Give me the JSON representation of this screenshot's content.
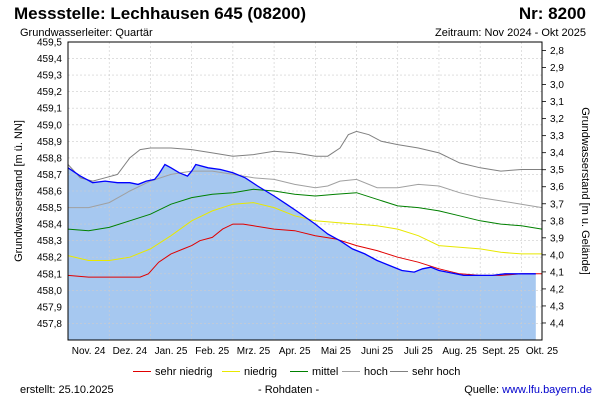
{
  "header": {
    "title": "Messstelle: Lechhausen 645 (08200)",
    "number": "Nr: 8200",
    "aquifer": "Grundwasserleiter: Quartär",
    "period": "Zeitraum: Nov 2024 - Okt 2025"
  },
  "footer": {
    "created": "erstellt:  25.10.2025",
    "rawdata": "- Rohdaten -",
    "source_label": "Quelle:",
    "source_link": "www.lfu.bayern.de"
  },
  "chart_data": {
    "type": "area",
    "ylabel": "Grundwasserstand [m ü. NN]",
    "ylabel_right": "Grundwasserstand [m u. Gelände]",
    "ylim": [
      457.7,
      459.5
    ],
    "yticks": [
      "459,5",
      "459,4",
      "459,3",
      "459,2",
      "459,1",
      "459,0",
      "458,9",
      "458,8",
      "458,7",
      "458,6",
      "458,5",
      "458,4",
      "458,3",
      "458,2",
      "458,1",
      "458,0",
      "457,9",
      "457,8"
    ],
    "ylim_right": [
      2.75,
      4.5
    ],
    "yticks_right": [
      "2,8",
      "2,9",
      "3,0",
      "3,1",
      "3,2",
      "3,3",
      "3,4",
      "3,5",
      "3,6",
      "3,7",
      "3,8",
      "3,9",
      "4,0",
      "4,1",
      "4,2",
      "4,3",
      "4,4"
    ],
    "x_range": [
      0,
      11.5
    ],
    "xticks": [
      "Nov. 24",
      "Dez. 24",
      "Jan. 25",
      "Feb. 25",
      "Mrz. 25",
      "Apr. 25",
      "Mai 25",
      "Juni 25",
      "Juli 25",
      "Aug. 25",
      "Sept. 25",
      "Okt. 25"
    ],
    "grid": true,
    "legend_position": "bottom",
    "colors": {
      "fill": "#a6c8f0",
      "measured": "#0000ff",
      "sehr_niedrig": "#e00000",
      "niedrig": "#e8e800",
      "mittel": "#008000",
      "hoch": "#a0a0a0",
      "sehr_hoch": "#808080",
      "grid": "#cccccc"
    },
    "series": [
      {
        "key": "measured",
        "x": [
          0,
          0.3,
          0.6,
          0.9,
          1.2,
          1.5,
          1.7,
          1.9,
          2.1,
          2.2,
          2.35,
          2.5,
          2.7,
          2.9,
          3.0,
          3.1,
          3.4,
          3.7,
          4.0,
          4.3,
          4.6,
          5.0,
          5.3,
          5.6,
          6.0,
          6.3,
          6.6,
          6.9,
          7.2,
          7.5,
          7.8,
          8.1,
          8.4,
          8.6,
          8.8,
          9.0,
          9.2,
          9.4,
          9.6,
          9.8,
          10.0,
          10.3,
          10.6,
          10.9,
          11.2,
          11.35
        ],
        "values": [
          458.74,
          458.69,
          458.65,
          458.66,
          458.65,
          458.65,
          458.64,
          458.66,
          458.67,
          458.7,
          458.76,
          458.74,
          458.71,
          458.69,
          458.72,
          458.76,
          458.74,
          458.73,
          458.71,
          458.68,
          458.63,
          458.57,
          458.52,
          458.47,
          458.4,
          458.34,
          458.3,
          458.25,
          458.22,
          458.18,
          458.15,
          458.12,
          458.11,
          458.13,
          458.14,
          458.12,
          458.11,
          458.1,
          458.09,
          458.09,
          458.09,
          458.09,
          458.1,
          458.1,
          458.1,
          458.1
        ]
      },
      {
        "key": "sehr_niedrig",
        "name": "sehr niedrig",
        "x": [
          0,
          0.5,
          1,
          1.5,
          1.75,
          1.95,
          2.2,
          2.5,
          2.8,
          3.0,
          3.2,
          3.5,
          3.75,
          4.0,
          4.25,
          4.5,
          5.0,
          5.5,
          6.0,
          6.5,
          7.0,
          7.5,
          8.0,
          8.5,
          9.0,
          9.5,
          10.0,
          10.5,
          11.0,
          11.5
        ],
        "values": [
          458.09,
          458.08,
          458.08,
          458.08,
          458.08,
          458.1,
          458.17,
          458.22,
          458.25,
          458.27,
          458.3,
          458.32,
          458.37,
          458.4,
          458.4,
          458.39,
          458.37,
          458.36,
          458.33,
          458.31,
          458.27,
          458.24,
          458.2,
          458.17,
          458.13,
          458.1,
          458.09,
          458.09,
          458.1,
          458.1
        ]
      },
      {
        "key": "niedrig",
        "name": "niedrig",
        "x": [
          0,
          0.5,
          1,
          1.5,
          2,
          2.5,
          3,
          3.5,
          4,
          4.5,
          5,
          5.5,
          6,
          6.5,
          7,
          7.5,
          8,
          8.5,
          9,
          9.5,
          10,
          10.5,
          11,
          11.5
        ],
        "values": [
          458.21,
          458.18,
          458.18,
          458.2,
          458.25,
          458.33,
          458.42,
          458.48,
          458.52,
          458.53,
          458.5,
          458.45,
          458.42,
          458.41,
          458.4,
          458.39,
          458.37,
          458.33,
          458.27,
          458.26,
          458.25,
          458.23,
          458.22,
          458.22
        ]
      },
      {
        "key": "mittel",
        "name": "mittel",
        "x": [
          0,
          0.5,
          1,
          1.5,
          2,
          2.5,
          3,
          3.5,
          4,
          4.5,
          5,
          5.5,
          6,
          6.5,
          7,
          7.5,
          8,
          8.5,
          9,
          9.5,
          10,
          10.5,
          11,
          11.5
        ],
        "values": [
          458.37,
          458.36,
          458.38,
          458.42,
          458.46,
          458.52,
          458.56,
          458.58,
          458.59,
          458.61,
          458.6,
          458.58,
          458.57,
          458.58,
          458.59,
          458.55,
          458.51,
          458.5,
          458.48,
          458.45,
          458.42,
          458.4,
          458.39,
          458.37
        ]
      },
      {
        "key": "hoch",
        "name": "hoch",
        "x": [
          0,
          0.5,
          1,
          1.5,
          2,
          2.5,
          3,
          3.5,
          4,
          4.5,
          5,
          5.5,
          6,
          6.3,
          6.6,
          7.0,
          7.5,
          8.0,
          8.5,
          9.0,
          9.5,
          10.0,
          10.5,
          11.0,
          11.5
        ],
        "values": [
          458.5,
          458.5,
          458.53,
          458.6,
          458.66,
          458.7,
          458.72,
          458.72,
          458.7,
          458.68,
          458.67,
          458.64,
          458.62,
          458.63,
          458.66,
          458.67,
          458.62,
          458.62,
          458.64,
          458.63,
          458.59,
          458.56,
          458.54,
          458.52,
          458.5
        ]
      },
      {
        "key": "sehr_hoch",
        "name": "sehr hoch",
        "x": [
          0,
          0.3,
          0.6,
          0.9,
          1.2,
          1.5,
          1.75,
          2.0,
          2.5,
          3.0,
          3.5,
          4.0,
          4.5,
          5.0,
          5.5,
          6.0,
          6.3,
          6.6,
          6.8,
          7.0,
          7.3,
          7.6,
          8.0,
          8.5,
          9.0,
          9.5,
          10.0,
          10.5,
          11.0,
          11.5
        ],
        "values": [
          458.76,
          458.68,
          458.66,
          458.68,
          458.7,
          458.8,
          458.85,
          458.86,
          458.86,
          458.85,
          458.83,
          458.81,
          458.82,
          458.84,
          458.83,
          458.81,
          458.81,
          458.86,
          458.94,
          458.96,
          458.94,
          458.9,
          458.88,
          458.86,
          458.83,
          458.77,
          458.74,
          458.72,
          458.73,
          458.73
        ]
      }
    ]
  }
}
